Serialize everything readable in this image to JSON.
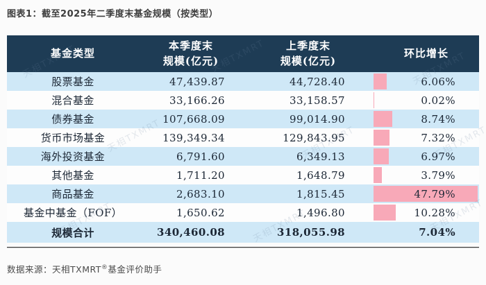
{
  "title": "图表1：截至2025年二季度末基金规模（按类型）",
  "source": "数据来源：天相TXMRT®基金评价助手",
  "source_prefix": "数据来源：天相TXMRT",
  "source_suffix": "基金评价助手",
  "registered_mark": "®",
  "watermark": "天相TXMRT",
  "colors": {
    "header_bg": "#1e3c55",
    "row_blue": "#cfe8f7",
    "row_white": "#fdfdfd",
    "bar_pink": "#f8a9b8",
    "header_text": "#ffffff",
    "cell_text": "#1c2735"
  },
  "table": {
    "headers": {
      "type": "基金类型",
      "current_line1": "本季度末",
      "current_line2": "规模(亿元)",
      "previous_line1": "上季度末",
      "previous_line2": "规模(亿元)",
      "growth": "环比增长"
    },
    "rows": [
      {
        "type": "股票基金",
        "current": "47,439.87",
        "previous": "44,728.40",
        "growth": "6.06%",
        "growth_value": 6.06
      },
      {
        "type": "混合基金",
        "current": "33,166.26",
        "previous": "33,158.57",
        "growth": "0.02%",
        "growth_value": 0.02
      },
      {
        "type": "债券基金",
        "current": "107,668.09",
        "previous": "99,014.90",
        "growth": "8.74%",
        "growth_value": 8.74
      },
      {
        "type": "货币市场基金",
        "current": "139,349.34",
        "previous": "129,843.95",
        "growth": "7.32%",
        "growth_value": 7.32
      },
      {
        "type": "海外投资基金",
        "current": "6,791.60",
        "previous": "6,349.13",
        "growth": "6.97%",
        "growth_value": 6.97
      },
      {
        "type": "其他基金",
        "current": "1,711.20",
        "previous": "1,648.79",
        "growth": "3.79%",
        "growth_value": 3.79
      },
      {
        "type": "商品基金",
        "current": "2,683.10",
        "previous": "1,815.45",
        "growth": "47.79%",
        "growth_value": 47.79
      },
      {
        "type": "基金中基金（FOF）",
        "current": "1,650.62",
        "previous": "1,496.80",
        "growth": "10.28%",
        "growth_value": 10.28
      }
    ],
    "total": {
      "type": "规模合计",
      "current": "340,460.08",
      "previous": "318,055.98",
      "growth": "7.04%"
    }
  },
  "chart_data": {
    "type": "table",
    "title": "图表1：截至2025年二季度末基金规模（按类型）",
    "columns": [
      "基金类型",
      "本季度末规模(亿元)",
      "上季度末规模(亿元)",
      "环比增长"
    ],
    "rows": [
      [
        "股票基金",
        47439.87,
        44728.4,
        "6.06%"
      ],
      [
        "混合基金",
        33166.26,
        33158.57,
        "0.02%"
      ],
      [
        "债券基金",
        107668.09,
        99014.9,
        "8.74%"
      ],
      [
        "货币市场基金",
        139349.34,
        129843.95,
        "7.32%"
      ],
      [
        "海外投资基金",
        6791.6,
        6349.13,
        "6.97%"
      ],
      [
        "其他基金",
        1711.2,
        1648.79,
        "3.79%"
      ],
      [
        "商品基金",
        2683.1,
        1815.45,
        "47.79%"
      ],
      [
        "基金中基金（FOF）",
        1650.62,
        1496.8,
        "10.28%"
      ],
      [
        "规模合计",
        340460.08,
        318055.98,
        "7.04%"
      ]
    ],
    "notes": "环比增长列带粉色数据条，长度与增长率成正比，最大值47.79%约占满列宽",
    "source": "数据来源：天相TXMRT®基金评价助手"
  }
}
